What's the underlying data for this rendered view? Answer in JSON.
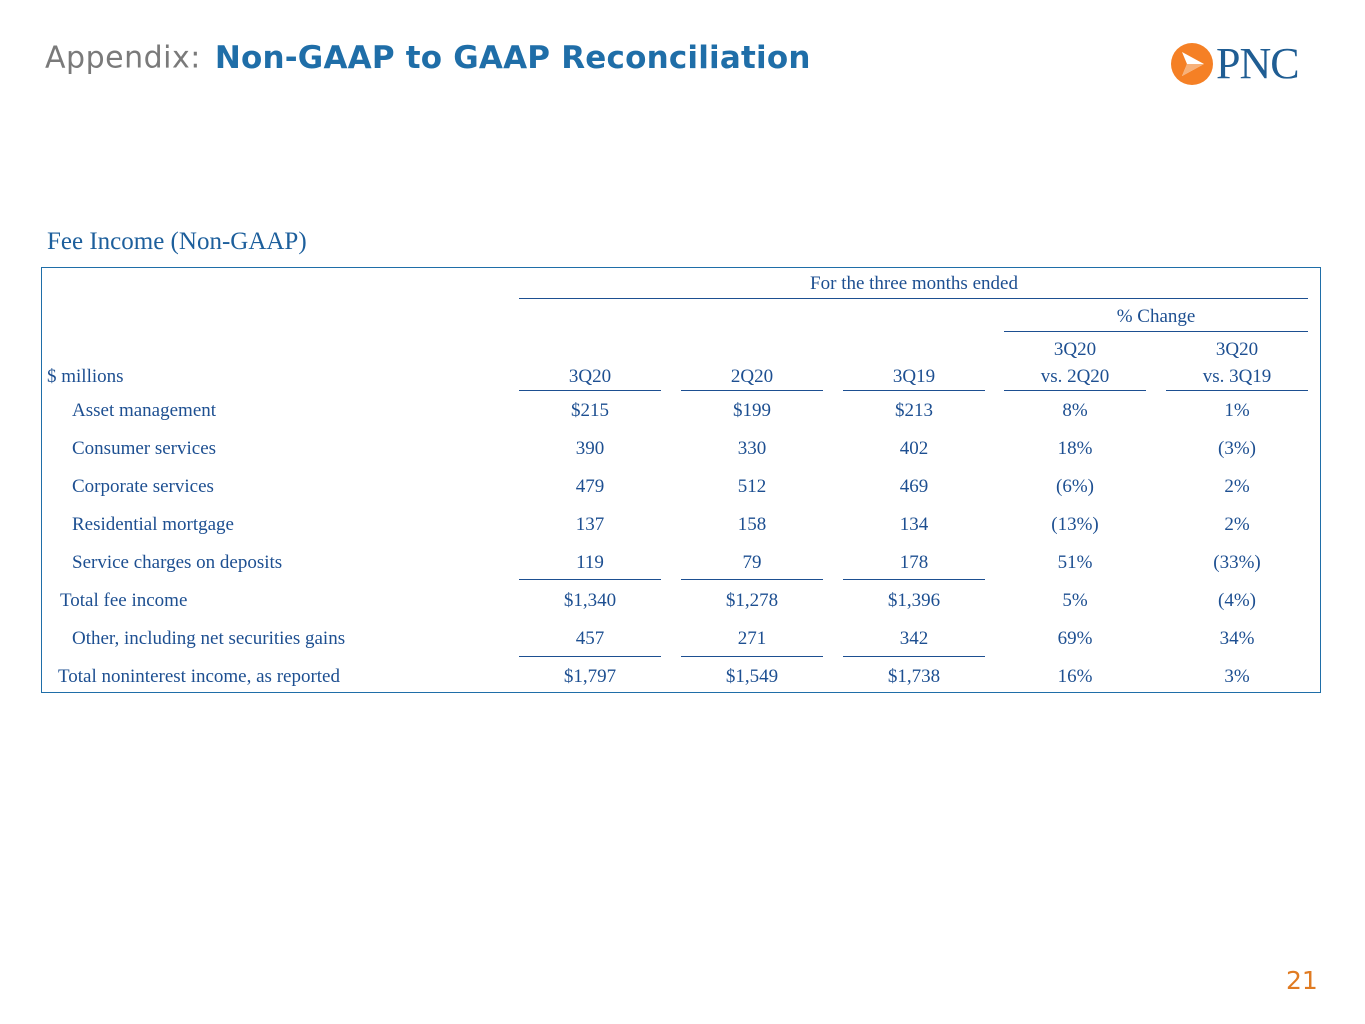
{
  "header": {
    "prefix": "Appendix:",
    "title": "Non-GAAP to GAAP Reconciliation",
    "logo_text": "PNC",
    "logo_colors": {
      "orange": "#f58025",
      "blue": "#1f5d93"
    }
  },
  "section_title": "Fee Income (Non-GAAP)",
  "table": {
    "period_header": "For the three months ended",
    "change_header": "% Change",
    "unit_label": "$ millions",
    "columns": [
      {
        "line1": "",
        "line2": "3Q20"
      },
      {
        "line1": "",
        "line2": "2Q20"
      },
      {
        "line1": "",
        "line2": "3Q19"
      },
      {
        "line1": "3Q20",
        "line2": "vs. 2Q20"
      },
      {
        "line1": "3Q20",
        "line2": "vs. 3Q19"
      }
    ],
    "rows": [
      {
        "label": "Asset management",
        "values": [
          "$215",
          "$199",
          "$213",
          "8%",
          "1%"
        ]
      },
      {
        "label": "Consumer services",
        "values": [
          "390",
          "330",
          "402",
          "18%",
          "(3%)"
        ]
      },
      {
        "label": "Corporate services",
        "values": [
          "479",
          "512",
          "469",
          "(6%)",
          "2%"
        ]
      },
      {
        "label": "Residential mortgage",
        "values": [
          "137",
          "158",
          "134",
          "(13%)",
          "2%"
        ]
      },
      {
        "label": "Service charges on deposits",
        "values": [
          "119",
          "79",
          "178",
          "51%",
          "(33%)"
        ]
      },
      {
        "label": "Total fee income",
        "values": [
          "$1,340",
          "$1,278",
          "$1,396",
          "5%",
          "(4%)"
        ]
      },
      {
        "label": "Other, including net securities gains",
        "values": [
          "457",
          "271",
          "342",
          "69%",
          "34%"
        ]
      },
      {
        "label": "Total noninterest income, as reported",
        "values": [
          "$1,797",
          "$1,549",
          "$1,738",
          "16%",
          "3%"
        ]
      }
    ]
  },
  "page_number": "21"
}
